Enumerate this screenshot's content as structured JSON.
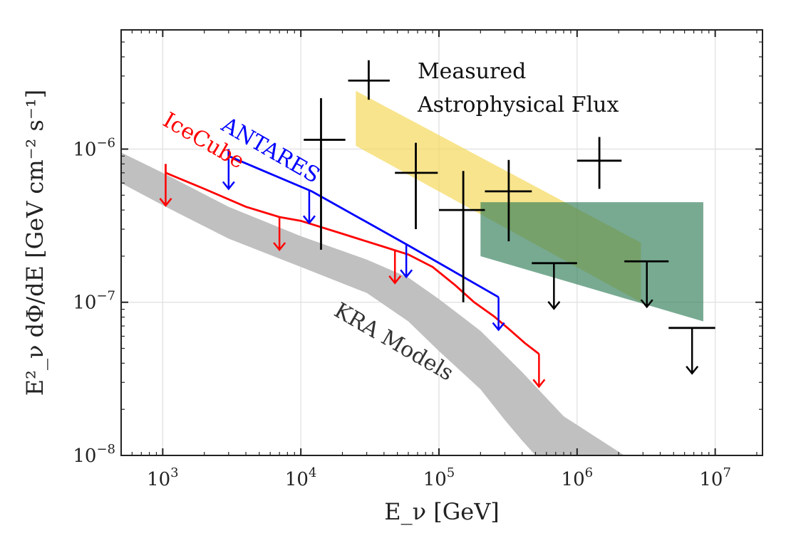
{
  "chart_data": {
    "type": "line",
    "title": "",
    "xlabel": "E_ν [GeV]",
    "ylabel": "E²_ν dΦ/dE [GeV cm⁻² s⁻¹]",
    "xscale": "log",
    "yscale": "log",
    "xlim": [
      500,
      22000000
    ],
    "ylim": [
      1e-08,
      6e-06
    ],
    "grid": true,
    "x_ticks": [
      {
        "value": 1000,
        "base": "10",
        "exp": "3"
      },
      {
        "value": 10000,
        "base": "10",
        "exp": "4"
      },
      {
        "value": 100000,
        "base": "10",
        "exp": "5"
      },
      {
        "value": 1000000,
        "base": "10",
        "exp": "6"
      },
      {
        "value": 10000000,
        "base": "10",
        "exp": "7"
      }
    ],
    "y_ticks": [
      {
        "value": 1e-08,
        "base": "10",
        "exp": "−8"
      },
      {
        "value": 1e-07,
        "base": "10",
        "exp": "−7"
      },
      {
        "value": 1e-06,
        "base": "10",
        "exp": "−6"
      }
    ],
    "bands": [
      {
        "name": "KRA Models",
        "color": "#c0c0c0",
        "upper": [
          [
            500,
            9.5e-07
          ],
          [
            1000,
            7e-07
          ],
          [
            3000,
            4.2e-07
          ],
          [
            10000,
            2.7e-07
          ],
          [
            30000,
            1.9e-07
          ],
          [
            60000,
            1.45e-07
          ],
          [
            100000,
            1.05e-07
          ],
          [
            200000,
            6.5e-08
          ],
          [
            400000,
            3.5e-08
          ],
          [
            800000,
            1.8e-08
          ],
          [
            2200000,
            1e-08
          ]
        ],
        "lower": [
          [
            500,
            6e-07
          ],
          [
            1000,
            4.3e-07
          ],
          [
            3000,
            2.6e-07
          ],
          [
            10000,
            1.7e-07
          ],
          [
            30000,
            1.15e-07
          ],
          [
            60000,
            7.5e-08
          ],
          [
            100000,
            4.8e-08
          ],
          [
            200000,
            2.7e-08
          ],
          [
            300000,
            1.7e-08
          ],
          [
            400000,
            1.25e-08
          ],
          [
            500000,
            1e-08
          ]
        ]
      },
      {
        "name": "Measured Astrophysical Flux",
        "color": "#f5d54e",
        "opacity": 0.65,
        "polygon": [
          [
            25000,
            2.4e-06
          ],
          [
            2900000,
            2.45e-07
          ],
          [
            2900000,
            1e-07
          ],
          [
            25000,
            1.05e-06
          ]
        ]
      },
      {
        "name": "green region",
        "color": "#2f7d57",
        "opacity": 0.65,
        "polygon": [
          [
            200000,
            4.5e-07
          ],
          [
            8200000,
            4.5e-07
          ],
          [
            8200000,
            7.5e-08
          ],
          [
            200000,
            2e-07
          ]
        ]
      }
    ],
    "series": [
      {
        "name": "IceCube",
        "color": "#ff0000",
        "points": [
          [
            1050,
            8e-07
          ],
          [
            1050,
            7e-07
          ],
          [
            2000,
            5.5e-07
          ],
          [
            4000,
            4.2e-07
          ],
          [
            7000,
            3.6e-07
          ],
          [
            10000,
            3.4e-07
          ],
          [
            20000,
            2.8e-07
          ],
          [
            40000,
            2.3e-07
          ],
          [
            60000,
            2.05e-07
          ],
          [
            90000,
            1.7e-07
          ],
          [
            130000,
            1.3e-07
          ],
          [
            180000,
            1e-07
          ],
          [
            250000,
            8.1e-08
          ],
          [
            320000,
            6.7e-08
          ],
          [
            420000,
            5.4e-08
          ],
          [
            530000,
            4.6e-08
          ]
        ],
        "upper_limit_x": [
          1050,
          7000,
          48000,
          530000
        ]
      },
      {
        "name": "ANTARES",
        "color": "#0000ff",
        "points": [
          [
            3000,
            1e-06
          ],
          [
            3000,
            9e-07
          ],
          [
            12000,
            5.3e-07
          ],
          [
            60000,
            2.35e-07
          ],
          [
            270000,
            1.08e-07
          ]
        ],
        "upper_limit_x": [
          3000,
          11500,
          58000,
          270000
        ]
      }
    ],
    "data_points": [
      {
        "x": 31000,
        "y": 2.8e-06,
        "xlo": 22000,
        "xhi": 44000,
        "ylo": 2.1e-06,
        "yhi": 3.8e-06
      },
      {
        "x": 14000,
        "y": 1.15e-06,
        "xlo": 10500,
        "xhi": 21000,
        "ylo": 2.2e-07,
        "yhi": 2.15e-06
      },
      {
        "x": 68000,
        "y": 7e-07,
        "xlo": 48000,
        "xhi": 98000,
        "ylo": 3e-07,
        "yhi": 1.1e-06
      },
      {
        "x": 150000,
        "y": 4e-07,
        "xlo": 100000,
        "xhi": 215000,
        "ylo": 1e-07,
        "yhi": 7.2e-07
      },
      {
        "x": 320000,
        "y": 5.3e-07,
        "xlo": 215000,
        "xhi": 470000,
        "ylo": 2.5e-07,
        "yhi": 8.5e-07
      },
      {
        "x": 1450000,
        "y": 8.4e-07,
        "xlo": 1000000,
        "xhi": 2100000,
        "ylo": 5.5e-07,
        "yhi": 1.2e-06
      }
    ],
    "upper_limits": [
      {
        "x": 680000,
        "y": 1.8e-07,
        "xlo": 470000,
        "xhi": 1000000
      },
      {
        "x": 3200000,
        "y": 1.85e-07,
        "xlo": 2200000,
        "xhi": 4600000
      },
      {
        "x": 6800000,
        "y": 6.8e-08,
        "xlo": 4600000,
        "xhi": 10000000
      }
    ],
    "annotations": [
      {
        "text": "Measured",
        "x": 70000,
        "y": 2.9e-06,
        "color": "#111111"
      },
      {
        "text": "Astrophysical Flux",
        "x": 70000,
        "y": 1.75e-06,
        "color": "#111111"
      },
      {
        "text": "ANTARES",
        "x": 2600,
        "y": 1.35e-06,
        "color": "#0000ff",
        "rotate": 30
      },
      {
        "text": "IceCube",
        "x": 980,
        "y": 1.45e-06,
        "color": "#ff0000",
        "rotate": 30
      },
      {
        "text": "KRA Models",
        "x": 17000,
        "y": 8.3e-08,
        "color": "#333333",
        "rotate": 30
      }
    ]
  }
}
